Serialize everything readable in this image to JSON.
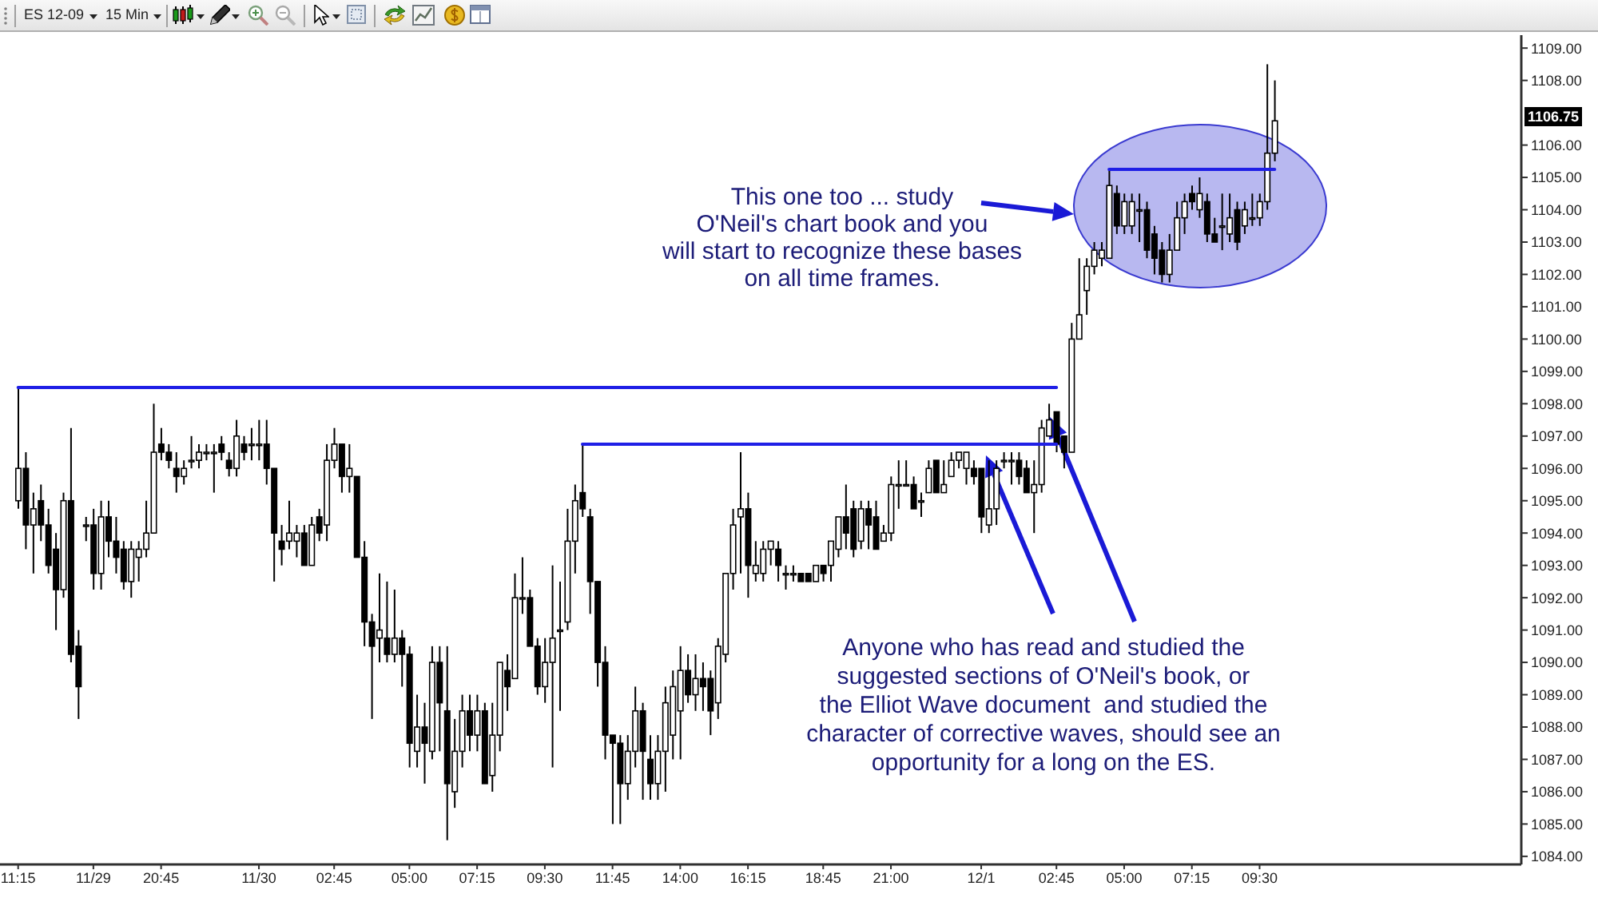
{
  "chart_data": {
    "type": "candlestick",
    "title": "ES 12-09",
    "subtitle": "15 Min",
    "color": "#000000",
    "categories": [
      "11:15",
      null,
      null,
      null,
      null,
      null,
      null,
      null,
      null,
      null,
      "11/29",
      null,
      null,
      null,
      null,
      null,
      null,
      null,
      null,
      "20:45",
      null,
      null,
      null,
      null,
      null,
      null,
      null,
      null,
      null,
      null,
      null,
      null,
      "11/30",
      null,
      null,
      null,
      null,
      null,
      null,
      null,
      null,
      null,
      "02:45",
      null,
      null,
      null,
      null,
      null,
      null,
      null,
      null,
      null,
      "05:00",
      null,
      null,
      null,
      null,
      null,
      null,
      null,
      null,
      "07:15",
      null,
      null,
      null,
      null,
      null,
      null,
      null,
      null,
      "09:30",
      null,
      null,
      null,
      null,
      null,
      null,
      null,
      null,
      "11:45",
      null,
      null,
      null,
      null,
      null,
      null,
      null,
      null,
      "14:00",
      null,
      null,
      null,
      null,
      null,
      null,
      null,
      null,
      "16:15",
      null,
      null,
      null,
      null,
      null,
      null,
      null,
      null,
      null,
      "18:45",
      null,
      null,
      null,
      null,
      null,
      null,
      null,
      null,
      "21:00",
      null,
      null,
      null,
      null,
      null,
      null,
      null,
      null,
      null,
      null,
      null,
      "12/1",
      null,
      null,
      null,
      null,
      null,
      null,
      null,
      null,
      null,
      "02:45",
      null,
      null,
      null,
      null,
      null,
      null,
      null,
      null,
      "05:00",
      null,
      null,
      null,
      null,
      null,
      null,
      null,
      null,
      "07:15",
      null,
      null,
      null,
      null,
      null,
      null,
      null,
      null,
      "09:30",
      null,
      null
    ],
    "ohlc": [
      [
        1095.0,
        1098.5,
        1094.75,
        1096.0
      ],
      [
        1096.0,
        1096.5,
        1093.5,
        1094.25
      ],
      [
        1094.25,
        1095.25,
        1092.75,
        1094.75
      ],
      [
        1095.0,
        1095.5,
        1093.75,
        1094.25
      ],
      [
        1094.25,
        1094.75,
        1092.75,
        1093.0
      ],
      [
        1093.5,
        1094.0,
        1091.0,
        1092.25
      ],
      [
        1092.25,
        1095.25,
        1092.0,
        1095.0
      ],
      [
        1095.0,
        1097.25,
        1090.0,
        1090.25
      ],
      [
        1090.5,
        1091.0,
        1088.25,
        1089.25
      ],
      [
        1094.25,
        1094.5,
        1093.75,
        1094.25
      ],
      [
        1094.25,
        1094.75,
        1092.25,
        1092.75
      ],
      [
        1092.75,
        1095.0,
        1092.25,
        1094.5
      ],
      [
        1094.5,
        1095.0,
        1093.25,
        1093.75
      ],
      [
        1093.75,
        1094.5,
        1092.75,
        1093.25
      ],
      [
        1093.5,
        1093.75,
        1092.25,
        1092.5
      ],
      [
        1092.5,
        1093.75,
        1092.0,
        1093.5
      ],
      [
        1093.25,
        1093.75,
        1092.5,
        1093.5
      ],
      [
        1093.5,
        1095.0,
        1093.25,
        1094.0
      ],
      [
        1094.0,
        1098.0,
        1094.0,
        1096.5
      ],
      [
        1096.75,
        1097.25,
        1096.25,
        1096.5
      ],
      [
        1096.5,
        1096.75,
        1096.0,
        1096.25
      ],
      [
        1096.0,
        1096.5,
        1095.25,
        1095.75
      ],
      [
        1095.75,
        1096.25,
        1095.5,
        1096.0
      ],
      [
        1096.25,
        1097.0,
        1096.0,
        1096.25
      ],
      [
        1096.25,
        1096.75,
        1096.0,
        1096.5
      ],
      [
        1096.5,
        1096.75,
        1096.25,
        1096.5
      ],
      [
        1096.5,
        1096.75,
        1095.25,
        1096.5
      ],
      [
        1096.75,
        1097.0,
        1096.25,
        1096.5
      ],
      [
        1096.25,
        1096.5,
        1095.75,
        1096.0
      ],
      [
        1096.0,
        1097.5,
        1095.75,
        1097.0
      ],
      [
        1096.75,
        1097.0,
        1096.25,
        1096.5
      ],
      [
        1096.75,
        1097.25,
        1096.25,
        1096.75
      ],
      [
        1096.75,
        1097.5,
        1096.25,
        1096.75
      ],
      [
        1096.75,
        1097.5,
        1095.5,
        1096.0
      ],
      [
        1096.0,
        1096.0,
        1092.5,
        1094.0
      ],
      [
        1093.75,
        1094.25,
        1093.0,
        1093.5
      ],
      [
        1093.75,
        1095.0,
        1093.5,
        1094.0
      ],
      [
        1093.75,
        1094.25,
        1093.25,
        1094.0
      ],
      [
        1094.0,
        1094.25,
        1093.0,
        1093.0
      ],
      [
        1093.0,
        1094.5,
        1093.0,
        1094.25
      ],
      [
        1094.5,
        1094.75,
        1093.75,
        1094.0
      ],
      [
        1094.25,
        1096.75,
        1093.75,
        1096.25
      ],
      [
        1096.25,
        1097.25,
        1096.0,
        1096.75
      ],
      [
        1096.75,
        1096.75,
        1095.25,
        1095.75
      ],
      [
        1095.75,
        1096.75,
        1095.25,
        1096.0
      ],
      [
        1095.75,
        1095.75,
        1093.25,
        1093.25
      ],
      [
        1093.25,
        1093.75,
        1090.5,
        1091.25
      ],
      [
        1091.25,
        1091.5,
        1088.25,
        1090.5
      ],
      [
        1090.75,
        1092.75,
        1090.0,
        1091.0
      ],
      [
        1090.75,
        1092.5,
        1090.0,
        1090.25
      ],
      [
        1090.25,
        1092.25,
        1090.0,
        1090.75
      ],
      [
        1090.75,
        1091.0,
        1089.25,
        1090.25
      ],
      [
        1090.25,
        1090.5,
        1086.75,
        1087.5
      ],
      [
        1087.25,
        1089.0,
        1086.75,
        1088.0
      ],
      [
        1088.0,
        1088.75,
        1086.25,
        1087.5
      ],
      [
        1087.25,
        1090.5,
        1087.0,
        1090.0
      ],
      [
        1090.0,
        1090.5,
        1087.25,
        1088.75
      ],
      [
        1088.5,
        1090.5,
        1084.5,
        1086.25
      ],
      [
        1086.0,
        1088.25,
        1085.5,
        1087.25
      ],
      [
        1087.25,
        1089.0,
        1086.75,
        1088.5
      ],
      [
        1088.5,
        1089.0,
        1087.25,
        1087.75
      ],
      [
        1087.75,
        1089.0,
        1087.25,
        1088.5
      ],
      [
        1088.5,
        1088.75,
        1086.25,
        1086.25
      ],
      [
        1086.5,
        1088.75,
        1086.0,
        1087.75
      ],
      [
        1087.75,
        1090.0,
        1087.25,
        1090.0
      ],
      [
        1089.75,
        1090.25,
        1088.5,
        1089.25
      ],
      [
        1089.5,
        1092.75,
        1089.5,
        1092.0
      ],
      [
        1092.0,
        1093.25,
        1091.5,
        1092.0
      ],
      [
        1092.0,
        1092.25,
        1090.5,
        1090.5
      ],
      [
        1090.5,
        1090.75,
        1089.0,
        1089.25
      ],
      [
        1089.25,
        1090.75,
        1088.75,
        1090.0
      ],
      [
        1090.0,
        1093.0,
        1086.75,
        1090.75
      ],
      [
        1091.0,
        1092.5,
        1088.5,
        1091.0
      ],
      [
        1091.25,
        1094.75,
        1091.0,
        1093.75
      ],
      [
        1093.75,
        1095.5,
        1092.75,
        1095.0
      ],
      [
        1095.25,
        1096.75,
        1094.5,
        1094.75
      ],
      [
        1094.5,
        1094.75,
        1091.5,
        1092.5
      ],
      [
        1092.5,
        1092.5,
        1089.25,
        1090.0
      ],
      [
        1090.0,
        1090.5,
        1087.0,
        1087.75
      ],
      [
        1087.75,
        1087.75,
        1085.0,
        1087.5
      ],
      [
        1087.5,
        1087.75,
        1085.0,
        1086.25
      ],
      [
        1086.25,
        1087.75,
        1085.75,
        1087.25
      ],
      [
        1087.25,
        1089.25,
        1086.75,
        1088.5
      ],
      [
        1088.5,
        1088.75,
        1085.75,
        1087.25
      ],
      [
        1087.0,
        1087.75,
        1085.75,
        1086.25
      ],
      [
        1086.25,
        1087.75,
        1085.75,
        1087.25
      ],
      [
        1087.25,
        1089.25,
        1086.0,
        1088.75
      ],
      [
        1087.75,
        1089.75,
        1087.0,
        1089.25
      ],
      [
        1088.5,
        1090.5,
        1087.0,
        1089.75
      ],
      [
        1089.75,
        1090.25,
        1088.75,
        1089.0
      ],
      [
        1089.0,
        1090.25,
        1088.5,
        1089.5
      ],
      [
        1089.5,
        1090.0,
        1088.5,
        1089.25
      ],
      [
        1089.5,
        1089.75,
        1087.75,
        1088.5
      ],
      [
        1088.75,
        1090.75,
        1088.25,
        1090.5
      ],
      [
        1090.25,
        1092.75,
        1090.0,
        1092.75
      ],
      [
        1092.75,
        1094.75,
        1092.25,
        1094.25
      ],
      [
        1094.5,
        1096.5,
        1092.75,
        1094.75
      ],
      [
        1094.75,
        1095.25,
        1092.0,
        1093.0
      ],
      [
        1092.75,
        1093.75,
        1092.5,
        1093.0
      ],
      [
        1092.75,
        1093.75,
        1092.5,
        1093.5
      ],
      [
        1093.5,
        1093.75,
        1093.0,
        1093.75
      ],
      [
        1093.5,
        1093.75,
        1092.5,
        1093.0
      ],
      [
        1092.75,
        1093.0,
        1092.25,
        1092.75
      ],
      [
        1092.75,
        1093.0,
        1092.5,
        1092.75
      ],
      [
        1092.75,
        1092.75,
        1092.5,
        1092.5
      ],
      [
        1092.75,
        1092.75,
        1092.5,
        1092.5
      ],
      [
        1092.5,
        1093.0,
        1092.5,
        1093.0
      ],
      [
        1093.0,
        1093.0,
        1092.5,
        1092.75
      ],
      [
        1093.0,
        1093.75,
        1092.5,
        1093.75
      ],
      [
        1093.5,
        1094.5,
        1093.25,
        1094.5
      ],
      [
        1094.5,
        1095.5,
        1093.5,
        1094.0
      ],
      [
        1094.75,
        1095.0,
        1093.25,
        1093.5
      ],
      [
        1093.75,
        1095.0,
        1093.5,
        1094.75
      ],
      [
        1094.75,
        1095.0,
        1093.5,
        1094.25
      ],
      [
        1094.5,
        1095.0,
        1093.5,
        1093.5
      ],
      [
        1093.75,
        1094.25,
        1093.75,
        1094.0
      ],
      [
        1094.0,
        1095.75,
        1093.75,
        1095.5
      ],
      [
        1095.5,
        1096.25,
        1094.75,
        1095.5
      ],
      [
        1095.5,
        1096.25,
        1095.5,
        1095.5
      ],
      [
        1095.5,
        1095.75,
        1094.75,
        1094.75
      ],
      [
        1095.0,
        1095.25,
        1094.5,
        1095.0
      ],
      [
        1095.25,
        1096.25,
        1095.25,
        1096.0
      ],
      [
        1096.25,
        1096.25,
        1095.25,
        1095.25
      ],
      [
        1095.25,
        1096.25,
        1095.25,
        1095.5
      ],
      [
        1095.75,
        1096.5,
        1095.75,
        1096.25
      ],
      [
        1096.25,
        1096.5,
        1096.0,
        1096.5
      ],
      [
        1096.0,
        1096.5,
        1095.5,
        1096.5
      ],
      [
        1096.0,
        1096.25,
        1095.5,
        1095.75
      ],
      [
        1096.0,
        1096.0,
        1094.0,
        1094.5
      ],
      [
        1094.25,
        1096.25,
        1094.0,
        1094.75
      ],
      [
        1094.75,
        1096.25,
        1094.25,
        1096.0
      ],
      [
        1096.25,
        1096.5,
        1096.0,
        1096.25
      ],
      [
        1096.25,
        1096.5,
        1095.5,
        1096.25
      ],
      [
        1096.25,
        1096.5,
        1095.5,
        1095.75
      ],
      [
        1096.0,
        1096.25,
        1095.25,
        1095.25
      ],
      [
        1095.25,
        1096.25,
        1094.0,
        1095.5
      ],
      [
        1095.5,
        1097.5,
        1095.25,
        1097.25
      ],
      [
        1097.0,
        1098.0,
        1097.0,
        1097.5
      ],
      [
        1097.75,
        1097.75,
        1096.5,
        1096.75
      ],
      [
        1097.0,
        1097.0,
        1096.0,
        1096.5
      ],
      [
        1096.5,
        1100.5,
        1096.5,
        1100.0
      ],
      [
        1100.0,
        1102.5,
        1100.0,
        1100.75
      ],
      [
        1101.5,
        1102.5,
        1100.75,
        1102.25
      ],
      [
        1102.25,
        1103.0,
        1102.0,
        1102.75
      ],
      [
        1102.5,
        1103.0,
        1102.25,
        1102.75
      ],
      [
        1102.5,
        1105.25,
        1102.5,
        1104.75
      ],
      [
        1104.5,
        1104.75,
        1103.25,
        1103.5
      ],
      [
        1103.5,
        1104.5,
        1103.25,
        1104.25
      ],
      [
        1103.5,
        1104.5,
        1103.25,
        1104.25
      ],
      [
        1104.0,
        1104.5,
        1103.0,
        1104.0
      ],
      [
        1104.0,
        1104.25,
        1102.5,
        1102.75
      ],
      [
        1103.25,
        1103.5,
        1102.0,
        1102.5
      ],
      [
        1102.75,
        1103.0,
        1101.75,
        1102.0
      ],
      [
        1102.0,
        1103.25,
        1101.75,
        1102.75
      ],
      [
        1102.75,
        1104.25,
        1102.75,
        1103.75
      ],
      [
        1103.75,
        1104.5,
        1103.25,
        1104.25
      ],
      [
        1104.5,
        1104.75,
        1104.0,
        1104.25
      ],
      [
        1104.0,
        1105.0,
        1103.75,
        1104.5
      ],
      [
        1104.25,
        1104.5,
        1103.0,
        1103.25
      ],
      [
        1103.25,
        1103.75,
        1103.0,
        1103.0
      ],
      [
        1103.5,
        1104.5,
        1102.75,
        1103.5
      ],
      [
        1103.25,
        1104.5,
        1103.0,
        1103.75
      ],
      [
        1104.0,
        1104.25,
        1102.75,
        1103.0
      ],
      [
        1103.5,
        1104.25,
        1103.25,
        1104.0
      ],
      [
        1103.75,
        1104.5,
        1103.5,
        1103.75
      ],
      [
        1103.75,
        1104.5,
        1103.5,
        1104.25
      ],
      [
        1104.25,
        1108.5,
        1104.0,
        1105.75
      ],
      [
        1105.75,
        1108.0,
        1105.5,
        1106.75
      ]
    ],
    "series": [
      {
        "type": "line",
        "color": "#1f1fe6",
        "values": [
          1098.5,
          1098.5,
          1098.5,
          1098.5,
          1098.5,
          1098.5,
          1098.5,
          1098.5,
          1098.5,
          1098.5,
          1098.5,
          1098.5,
          1098.5,
          1098.5,
          1098.5,
          1098.5,
          1098.5,
          1098.5,
          1098.5,
          1098.5,
          1098.5,
          1098.5,
          1098.5,
          1098.5,
          1098.5,
          1098.5,
          1098.5,
          1098.5,
          1098.5,
          1098.5,
          1098.5,
          1098.5,
          1098.5,
          1098.5,
          1098.5,
          1098.5,
          1098.5,
          1098.5,
          1098.5,
          1098.5,
          1098.5,
          1098.5,
          1098.5,
          1098.5,
          1098.5,
          1098.5,
          1098.5,
          1098.5,
          1098.5,
          1098.5,
          1098.5,
          1098.5,
          1098.5,
          1098.5,
          1098.5,
          1098.5,
          1098.5,
          1098.5,
          1098.5,
          1098.5,
          1098.5,
          1098.5,
          1098.5,
          1098.5,
          1098.5,
          1098.5,
          1098.5,
          1098.5,
          1098.5,
          1098.5,
          1098.5,
          1098.5,
          1098.5,
          1098.5,
          1098.5,
          1098.5,
          1098.5,
          1098.5,
          1098.5,
          1098.5,
          1098.5,
          1098.5,
          1098.5,
          1098.5,
          1098.5,
          1098.5,
          1098.5,
          1098.5,
          1098.5,
          1098.5,
          1098.5,
          1098.5,
          1098.5,
          1098.5,
          1098.5,
          1098.5,
          1098.5,
          1098.5,
          1098.5,
          1098.5,
          1098.5,
          1098.5,
          1098.5,
          1098.5,
          1098.5,
          1098.5,
          1098.5,
          1098.5,
          1098.5,
          1098.5,
          1098.5,
          1098.5,
          1098.5,
          1098.5,
          1098.5,
          1098.5,
          1098.5,
          1098.5,
          1098.5,
          1098.5,
          1098.5,
          1098.5,
          1098.5,
          1098.5,
          1098.5,
          1098.5,
          1098.5,
          1098.5,
          1098.5,
          1098.5,
          1098.5,
          1098.5,
          1098.5,
          1098.5,
          1098.5,
          1098.5,
          1098.5,
          1098.5,
          1098.5,
          null,
          null,
          null,
          null,
          null,
          null,
          null,
          null,
          null,
          null,
          null,
          null,
          null,
          null,
          null,
          null,
          null,
          null,
          null,
          null,
          null,
          null,
          null,
          null,
          null,
          null,
          null,
          null,
          null
        ]
      },
      {
        "type": "line",
        "color": "#1f1fe6",
        "values": [
          null,
          null,
          null,
          null,
          null,
          null,
          null,
          null,
          null,
          null,
          null,
          null,
          null,
          null,
          null,
          null,
          null,
          null,
          null,
          null,
          null,
          null,
          null,
          null,
          null,
          null,
          null,
          null,
          null,
          null,
          null,
          null,
          null,
          null,
          null,
          null,
          null,
          null,
          null,
          null,
          null,
          null,
          null,
          null,
          null,
          null,
          null,
          null,
          null,
          null,
          null,
          null,
          null,
          null,
          null,
          null,
          null,
          null,
          null,
          null,
          null,
          null,
          null,
          null,
          null,
          null,
          null,
          null,
          null,
          null,
          null,
          null,
          null,
          null,
          null,
          1096.75,
          1096.75,
          1096.75,
          1096.75,
          1096.75,
          1096.75,
          1096.75,
          1096.75,
          1096.75,
          1096.75,
          1096.75,
          1096.75,
          1096.75,
          1096.75,
          1096.75,
          1096.75,
          1096.75,
          1096.75,
          1096.75,
          1096.75,
          1096.75,
          1096.75,
          1096.75,
          1096.75,
          1096.75,
          1096.75,
          1096.75,
          1096.75,
          1096.75,
          1096.75,
          1096.75,
          1096.75,
          1096.75,
          1096.75,
          1096.75,
          1096.75,
          1096.75,
          1096.75,
          1096.75,
          1096.75,
          1096.75,
          1096.75,
          1096.75,
          1096.75,
          1096.75,
          1096.75,
          1096.75,
          1096.75,
          1096.75,
          1096.75,
          1096.75,
          1096.75,
          1096.75,
          1096.75,
          1096.75,
          1096.75,
          1096.75,
          1096.75,
          1096.75,
          1096.75,
          1096.75,
          1096.75,
          1096.75,
          1096.75,
          null,
          null,
          null,
          null,
          null,
          null,
          null,
          null,
          null,
          null,
          null,
          null,
          null,
          null,
          null,
          null,
          null,
          null,
          null,
          null,
          null,
          null,
          null,
          null,
          null,
          null,
          null,
          null,
          null
        ]
      },
      {
        "type": "line",
        "color": "#1f1fe6",
        "values": [
          null,
          null,
          null,
          null,
          null,
          null,
          null,
          null,
          null,
          null,
          null,
          null,
          null,
          null,
          null,
          null,
          null,
          null,
          null,
          null,
          null,
          null,
          null,
          null,
          null,
          null,
          null,
          null,
          null,
          null,
          null,
          null,
          null,
          null,
          null,
          null,
          null,
          null,
          null,
          null,
          null,
          null,
          null,
          null,
          null,
          null,
          null,
          null,
          null,
          null,
          null,
          null,
          null,
          null,
          null,
          null,
          null,
          null,
          null,
          null,
          null,
          null,
          null,
          null,
          null,
          null,
          null,
          null,
          null,
          null,
          null,
          null,
          null,
          null,
          null,
          null,
          null,
          null,
          null,
          null,
          null,
          null,
          null,
          null,
          null,
          null,
          null,
          null,
          null,
          null,
          null,
          null,
          null,
          null,
          null,
          null,
          null,
          null,
          null,
          null,
          null,
          null,
          null,
          null,
          null,
          null,
          null,
          null,
          null,
          null,
          null,
          null,
          null,
          null,
          null,
          null,
          null,
          null,
          null,
          null,
          null,
          null,
          null,
          null,
          null,
          null,
          null,
          null,
          null,
          null,
          null,
          null,
          null,
          null,
          null,
          null,
          null,
          null,
          null,
          null,
          null,
          null,
          null,
          null,
          null,
          1105.25,
          1105.25,
          1105.25,
          1105.25,
          1105.25,
          1105.25,
          1105.25,
          1105.25,
          1105.25,
          1105.25,
          1105.25,
          1105.25,
          1105.25,
          1105.25,
          1105.25,
          1105.25,
          1105.25,
          1105.25,
          1105.25,
          1105.25,
          1105.25,
          1105.25,
          1105.25
        ]
      }
    ],
    "ylim": [
      1083.75,
      1109.4
    ],
    "yticks": [
      {
        "value": 1084,
        "label": "1084.00"
      },
      {
        "value": 1085,
        "label": "1085.00"
      },
      {
        "value": 1086,
        "label": "1086.00"
      },
      {
        "value": 1087,
        "label": "1087.00"
      },
      {
        "value": 1088,
        "label": "1088.00"
      },
      {
        "value": 1089,
        "label": "1089.00"
      },
      {
        "value": 1090,
        "label": "1090.00"
      },
      {
        "value": 1091,
        "label": "1091.00"
      },
      {
        "value": 1092,
        "label": "1092.00"
      },
      {
        "value": 1093,
        "label": "1093.00"
      },
      {
        "value": 1094,
        "label": "1094.00"
      },
      {
        "value": 1095,
        "label": "1095.00"
      },
      {
        "value": 1096,
        "label": "1096.00"
      },
      {
        "value": 1097,
        "label": "1097.00"
      },
      {
        "value": 1098,
        "label": "1098.00"
      },
      {
        "value": 1099,
        "label": "1099.00"
      },
      {
        "value": 1100,
        "label": "1100.00"
      },
      {
        "value": 1101,
        "label": "1101.00"
      },
      {
        "value": 1102,
        "label": "1102.00"
      },
      {
        "value": 1103,
        "label": "1103.00"
      },
      {
        "value": 1104,
        "label": "1104.00"
      },
      {
        "value": 1105,
        "label": "1105.00"
      },
      {
        "value": 1106,
        "label": "1106.00"
      },
      {
        "value": 1108,
        "label": "1108.00"
      },
      {
        "value": 1109,
        "label": "1109.00"
      }
    ],
    "annotations": [
      "This one too ... study\nO'Neil's chart book and you\nwill start to recognize these bases\non all time frames.",
      "Anyone who has read and studied the\nsuggested sections of O'Neil's book, or\nthe Elliot Wave document  and studied the\ncharacter of corrective waves, should see an\nopportunity for a long on the ES.",
      "1106.75"
    ]
  }
}
